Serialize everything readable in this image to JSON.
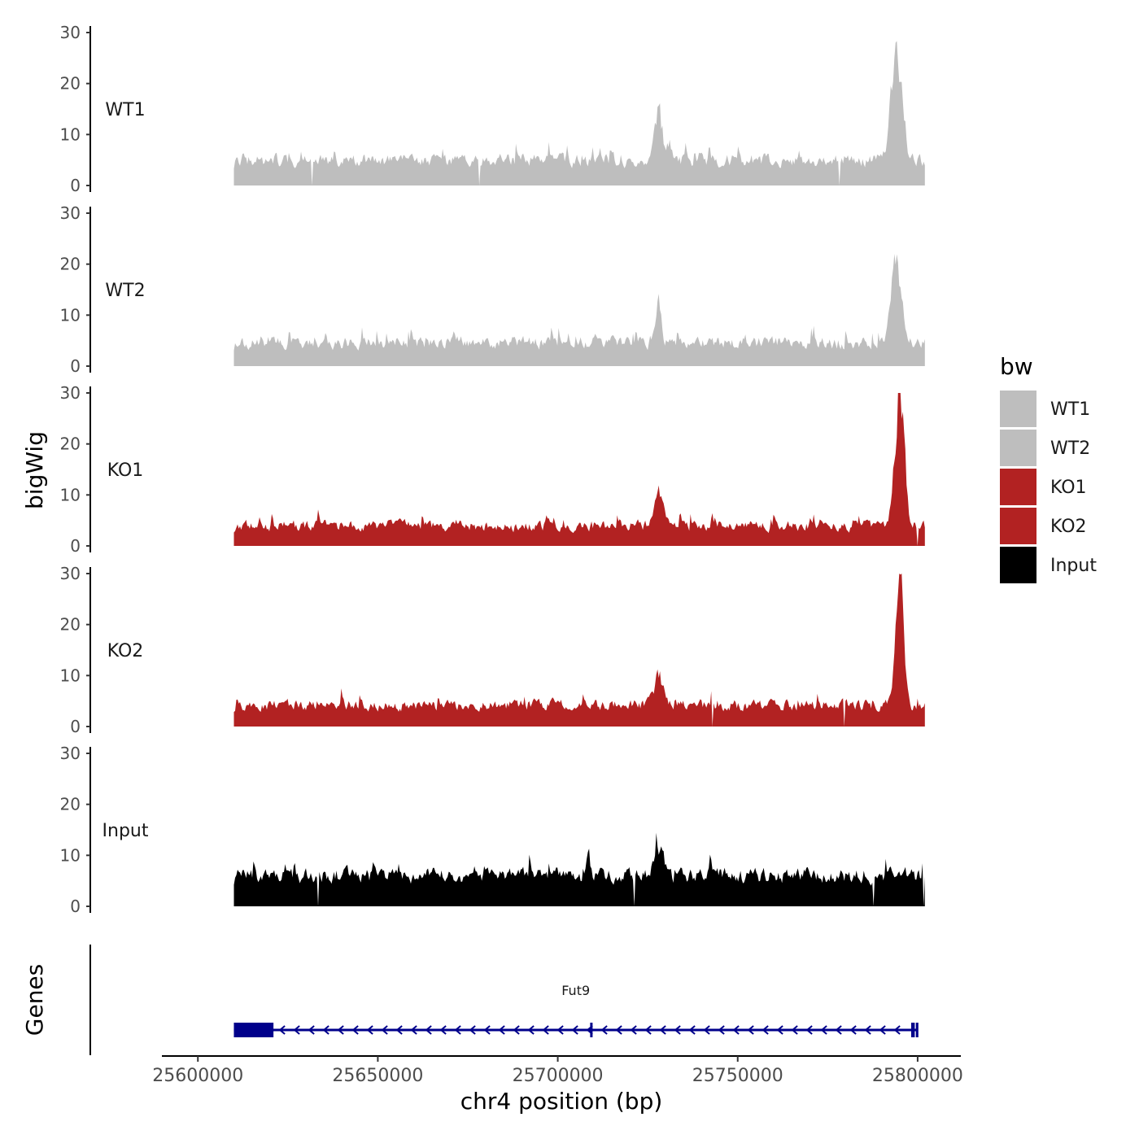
{
  "chart_data": {
    "type": "area",
    "title": "",
    "ylabel": "bigWig",
    "genes_label": "Genes",
    "xlabel": "chr4 position (bp)",
    "x_range": [
      25590000,
      25812000
    ],
    "data_range": [
      25610000,
      25802000
    ],
    "x_ticks": [
      {
        "value": 25600000,
        "label": "25600000"
      },
      {
        "value": 25650000,
        "label": "25650000"
      },
      {
        "value": 25700000,
        "label": "25700000"
      },
      {
        "value": 25750000,
        "label": "25750000"
      },
      {
        "value": 25800000,
        "label": "25800000"
      }
    ],
    "ylim": [
      0,
      30
    ],
    "y_ticks": [
      {
        "value": 0,
        "label": "0"
      },
      {
        "value": 10,
        "label": "10"
      },
      {
        "value": 20,
        "label": "20"
      },
      {
        "value": 30,
        "label": "30"
      }
    ],
    "legend": {
      "title": "bw",
      "position": "right",
      "entries": [
        {
          "label": "WT1",
          "color": "#bebebe"
        },
        {
          "label": "WT2",
          "color": "#bebebe"
        },
        {
          "label": "KO1",
          "color": "#b22222"
        },
        {
          "label": "KO2",
          "color": "#b22222"
        },
        {
          "label": "Input",
          "color": "#000000"
        }
      ]
    },
    "series": [
      {
        "name": "WT1",
        "color": "#bebebe",
        "baseline": 2.8,
        "noise": 4.2,
        "seed": 11,
        "peaks": [
          {
            "x": 25794000,
            "height": 23,
            "width": 1500
          },
          {
            "x": 25728000,
            "height": 12,
            "width": 900
          }
        ]
      },
      {
        "name": "WT2",
        "color": "#bebebe",
        "baseline": 2.6,
        "noise": 4.0,
        "seed": 23,
        "peaks": [
          {
            "x": 25794000,
            "height": 17.5,
            "width": 1500
          },
          {
            "x": 25728000,
            "height": 9,
            "width": 700
          }
        ]
      },
      {
        "name": "KO1",
        "color": "#b22222",
        "baseline": 2.2,
        "noise": 3.5,
        "seed": 37,
        "peaks": [
          {
            "x": 25795000,
            "height": 28.5,
            "width": 1300
          },
          {
            "x": 25728000,
            "height": 8,
            "width": 1200
          }
        ]
      },
      {
        "name": "KO2",
        "color": "#b22222",
        "baseline": 2.4,
        "noise": 3.6,
        "seed": 53,
        "peaks": [
          {
            "x": 25795000,
            "height": 29.5,
            "width": 1100
          },
          {
            "x": 25728000,
            "height": 6.5,
            "width": 1200
          }
        ]
      },
      {
        "name": "Input",
        "color": "#000000",
        "baseline": 3.6,
        "noise": 4.8,
        "seed": 71,
        "peaks": [
          {
            "x": 25728000,
            "height": 6,
            "width": 1500
          }
        ]
      }
    ],
    "gene": {
      "name": "Fut9",
      "color": "#00008b",
      "start": 25610000,
      "end": 25800000,
      "strand": "-",
      "exons": [
        {
          "start": 25610000,
          "end": 25621000
        },
        {
          "start": 25709000,
          "end": 25709400
        },
        {
          "start": 25798200,
          "end": 25799200
        },
        {
          "start": 25799500,
          "end": 25800200
        }
      ]
    }
  }
}
